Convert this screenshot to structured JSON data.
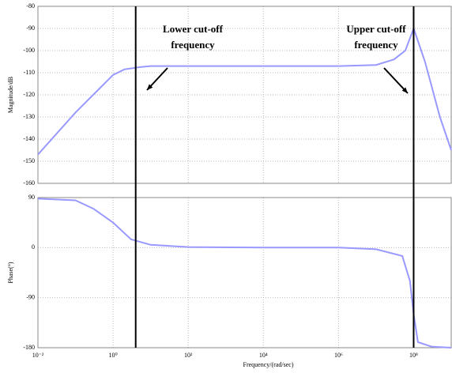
{
  "chart_data": [
    {
      "type": "line",
      "y_label": "Magnitude/dB",
      "log_x": true,
      "grid": true,
      "xlim": [
        0.01,
        1000000000
      ],
      "xticks": [
        0.01,
        1,
        100,
        10000,
        1000000,
        100000000
      ],
      "ylim": [
        -160,
        -80
      ],
      "yticks": [
        -80,
        -90,
        -100,
        -110,
        -120,
        -130,
        -140,
        -150,
        -160
      ],
      "x": [
        0.01,
        0.1,
        1,
        2,
        5,
        10,
        100,
        10000,
        1000000,
        10000000,
        30000000,
        60000000,
        100000000,
        200000000,
        500000000,
        1000000000
      ],
      "series": [
        {
          "color": "#9999ff",
          "values": [
            -147,
            -128,
            -111,
            -108.5,
            -107.5,
            -107,
            -107,
            -107,
            -107,
            -106.5,
            -104,
            -100,
            -90,
            -105,
            -130,
            -145
          ]
        }
      ],
      "cutoff_lines": [
        4,
        100000000
      ],
      "annotations": [
        [
          "Lower cut-off",
          "frequency"
        ],
        [
          "Upper cut-off",
          "frequency"
        ]
      ]
    },
    {
      "type": "line",
      "y_label": "Phase(°)",
      "x_label": "Frequency/(rad/sec)",
      "log_x": true,
      "grid": true,
      "xlim": [
        0.01,
        1000000000
      ],
      "xticks": [
        {
          "value": 0.01,
          "label": "10⁻²"
        },
        {
          "value": 1,
          "label": "10⁰"
        },
        {
          "value": 100,
          "label": "10²"
        },
        {
          "value": 10000,
          "label": "10⁴"
        },
        {
          "value": 1000000,
          "label": "10⁶"
        },
        {
          "value": 100000000,
          "label": "10⁸"
        }
      ],
      "ylim": [
        -180,
        90
      ],
      "yticks": [
        90,
        0,
        -90,
        -180
      ],
      "x": [
        0.01,
        0.1,
        0.3,
        1,
        3,
        10,
        100,
        10000,
        1000000,
        10000000,
        50000000,
        80000000,
        100000000,
        130000000,
        300000000,
        1000000000
      ],
      "series": [
        {
          "color": "#9999ff",
          "values": [
            88,
            85,
            70,
            45,
            15,
            5,
            1,
            0,
            0,
            -3,
            -15,
            -60,
            -120,
            -170,
            -178,
            -180
          ]
        }
      ]
    }
  ]
}
